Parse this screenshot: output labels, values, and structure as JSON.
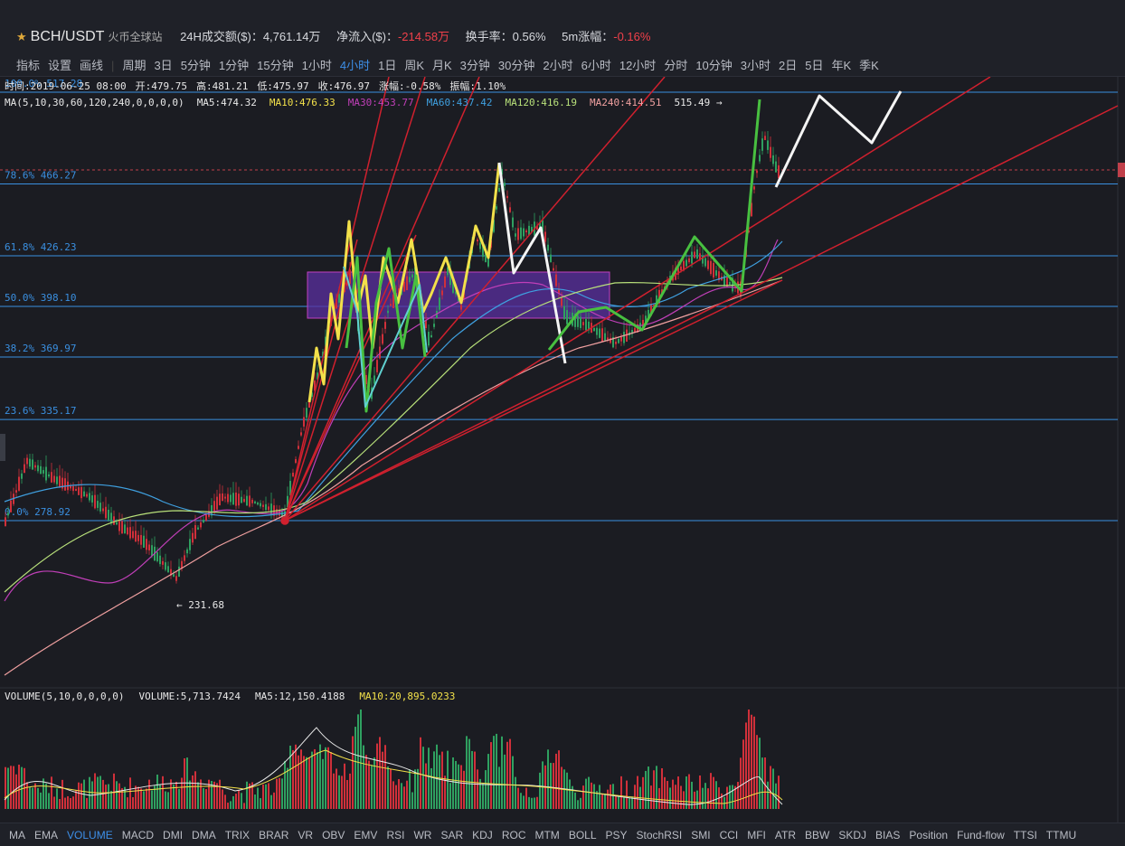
{
  "header": {
    "symbol": "BCH/USDT",
    "exchange": "火币全球站",
    "volume_label": "24H成交额($)：",
    "volume": "4,761.14万",
    "inflow_label": "净流入($)：",
    "inflow": "-214.58万",
    "turnover": "换手率：0.56%",
    "change_label": "5m涨幅：",
    "change": "-0.16%"
  },
  "toolbar": {
    "tools": [
      "指标",
      "设置",
      "画线"
    ],
    "period_label": "周期",
    "periods": [
      "3日",
      "5分钟",
      "1分钟",
      "15分钟",
      "1小时",
      "4小时",
      "1日",
      "周K",
      "月K",
      "3分钟",
      "30分钟",
      "2小时",
      "6小时",
      "12小时",
      "分时",
      "10分钟",
      "3小时",
      "2日",
      "5日",
      "年K",
      "季K"
    ],
    "active_period": "4小时"
  },
  "info": {
    "items": [
      "时间:2019-06-25 08:00",
      "开:479.75",
      "高:481.21",
      "低:475.97",
      "收:476.97",
      "涨幅:-0.58%",
      "振幅:1.10%"
    ]
  },
  "ma": {
    "label": "MA(5,10,30,60,120,240,0,0,0,0)",
    "items": [
      {
        "text": "MA5:474.32",
        "color": "#e8e8e8"
      },
      {
        "text": "MA10:476.33",
        "color": "#f2e04a"
      },
      {
        "text": "MA30:453.77",
        "color": "#c03fb8"
      },
      {
        "text": "MA60:437.42",
        "color": "#3fa0e0"
      },
      {
        "text": "MA120:416.19",
        "color": "#b8e07a"
      },
      {
        "text": "MA240:414.51",
        "color": "#f0a0a0"
      }
    ],
    "last": "515.49 →"
  },
  "fib": {
    "levels": [
      {
        "label": "100.0% 517.28",
        "price": 517.28
      },
      {
        "label": "78.6% 466.27",
        "price": 466.27
      },
      {
        "label": "61.8% 426.23",
        "price": 426.23
      },
      {
        "label": "50.0% 398.10",
        "price": 398.1
      },
      {
        "label": "38.2% 369.97",
        "price": 369.97
      },
      {
        "label": "23.6% 335.17",
        "price": 335.17
      },
      {
        "label": "0.0% 278.92",
        "price": 278.92
      }
    ]
  },
  "low_marker": {
    "label": "← 231.68",
    "price": 231.68
  },
  "volume_panel": {
    "label": "VOLUME(5,10,0,0,0,0)",
    "items": [
      {
        "text": "VOLUME:5,713.7424",
        "color": "#e8e8e8"
      },
      {
        "text": "MA5:12,150.4188",
        "color": "#e8e8e8"
      },
      {
        "text": "MA10:20,895.0233",
        "color": "#f2e04a"
      }
    ]
  },
  "indicators": {
    "tabs": [
      "MA",
      "EMA",
      "VOLUME",
      "MACD",
      "DMI",
      "DMA",
      "TRIX",
      "BRAR",
      "VR",
      "OBV",
      "EMV",
      "RSI",
      "WR",
      "SAR",
      "KDJ",
      "ROC",
      "MTM",
      "BOLL",
      "PSY",
      "StochRSI",
      "SMI",
      "CCI",
      "MFI",
      "ATR",
      "BBW",
      "SKDJ",
      "BIAS",
      "Position",
      "Fund-flow",
      "TTSI",
      "TTMU"
    ],
    "active": "VOLUME"
  }
}
